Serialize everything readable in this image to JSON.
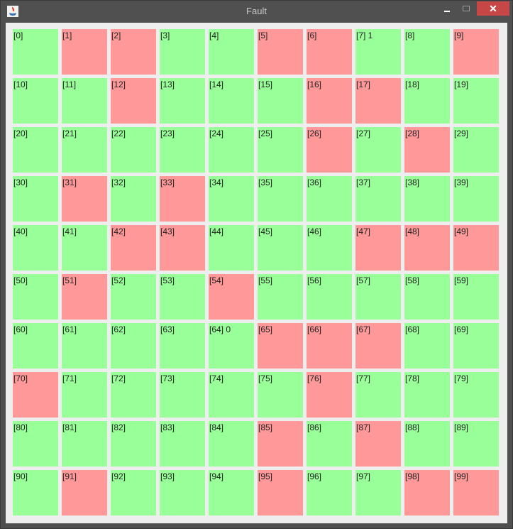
{
  "window": {
    "title": "Fault",
    "app_icon": "java-icon"
  },
  "colors": {
    "ok": "#99ff99",
    "fault": "#ff9999",
    "background": "#eeeeee"
  },
  "cells": [
    {
      "label": "[0]",
      "state": "ok"
    },
    {
      "label": "[1]",
      "state": "fault"
    },
    {
      "label": "[2]",
      "state": "fault"
    },
    {
      "label": "[3]",
      "state": "ok"
    },
    {
      "label": "[4]",
      "state": "ok"
    },
    {
      "label": "[5]",
      "state": "fault"
    },
    {
      "label": "[6]",
      "state": "fault"
    },
    {
      "label": "[7] 1",
      "state": "ok"
    },
    {
      "label": "[8]",
      "state": "ok"
    },
    {
      "label": "[9]",
      "state": "fault"
    },
    {
      "label": "[10]",
      "state": "ok"
    },
    {
      "label": "[11]",
      "state": "ok"
    },
    {
      "label": "[12]",
      "state": "fault"
    },
    {
      "label": "[13]",
      "state": "ok"
    },
    {
      "label": "[14]",
      "state": "ok"
    },
    {
      "label": "[15]",
      "state": "ok"
    },
    {
      "label": "[16]",
      "state": "fault"
    },
    {
      "label": "[17]",
      "state": "fault"
    },
    {
      "label": "[18]",
      "state": "ok"
    },
    {
      "label": "[19]",
      "state": "ok"
    },
    {
      "label": "[20]",
      "state": "ok"
    },
    {
      "label": "[21]",
      "state": "ok"
    },
    {
      "label": "[22]",
      "state": "ok"
    },
    {
      "label": "[23]",
      "state": "ok"
    },
    {
      "label": "[24]",
      "state": "ok"
    },
    {
      "label": "[25]",
      "state": "ok"
    },
    {
      "label": "[26]",
      "state": "fault"
    },
    {
      "label": "[27]",
      "state": "ok"
    },
    {
      "label": "[28]",
      "state": "fault"
    },
    {
      "label": "[29]",
      "state": "ok"
    },
    {
      "label": "[30]",
      "state": "ok"
    },
    {
      "label": "[31]",
      "state": "fault"
    },
    {
      "label": "[32]",
      "state": "ok"
    },
    {
      "label": "[33]",
      "state": "fault"
    },
    {
      "label": "[34]",
      "state": "ok"
    },
    {
      "label": "[35]",
      "state": "ok"
    },
    {
      "label": "[36]",
      "state": "ok"
    },
    {
      "label": "[37]",
      "state": "ok"
    },
    {
      "label": "[38]",
      "state": "ok"
    },
    {
      "label": "[39]",
      "state": "ok"
    },
    {
      "label": "[40]",
      "state": "ok"
    },
    {
      "label": "[41]",
      "state": "ok"
    },
    {
      "label": "[42]",
      "state": "fault"
    },
    {
      "label": "[43]",
      "state": "fault"
    },
    {
      "label": "[44]",
      "state": "ok"
    },
    {
      "label": "[45]",
      "state": "ok"
    },
    {
      "label": "[46]",
      "state": "ok"
    },
    {
      "label": "[47]",
      "state": "fault"
    },
    {
      "label": "[48]",
      "state": "fault"
    },
    {
      "label": "[49]",
      "state": "fault"
    },
    {
      "label": "[50]",
      "state": "ok"
    },
    {
      "label": "[51]",
      "state": "fault"
    },
    {
      "label": "[52]",
      "state": "ok"
    },
    {
      "label": "[53]",
      "state": "ok"
    },
    {
      "label": "[54]",
      "state": "fault"
    },
    {
      "label": "[55]",
      "state": "ok"
    },
    {
      "label": "[56]",
      "state": "ok"
    },
    {
      "label": "[57]",
      "state": "ok"
    },
    {
      "label": "[58]",
      "state": "ok"
    },
    {
      "label": "[59]",
      "state": "ok"
    },
    {
      "label": "[60]",
      "state": "ok"
    },
    {
      "label": "[61]",
      "state": "ok"
    },
    {
      "label": "[62]",
      "state": "ok"
    },
    {
      "label": "[63]",
      "state": "ok"
    },
    {
      "label": "[64] 0",
      "state": "ok"
    },
    {
      "label": "[65]",
      "state": "fault"
    },
    {
      "label": "[66]",
      "state": "fault"
    },
    {
      "label": "[67]",
      "state": "fault"
    },
    {
      "label": "[68]",
      "state": "ok"
    },
    {
      "label": "[69]",
      "state": "ok"
    },
    {
      "label": "[70]",
      "state": "fault"
    },
    {
      "label": "[71]",
      "state": "ok"
    },
    {
      "label": "[72]",
      "state": "ok"
    },
    {
      "label": "[73]",
      "state": "ok"
    },
    {
      "label": "[74]",
      "state": "ok"
    },
    {
      "label": "[75]",
      "state": "ok"
    },
    {
      "label": "[76]",
      "state": "fault"
    },
    {
      "label": "[77]",
      "state": "ok"
    },
    {
      "label": "[78]",
      "state": "ok"
    },
    {
      "label": "[79]",
      "state": "ok"
    },
    {
      "label": "[80]",
      "state": "ok"
    },
    {
      "label": "[81]",
      "state": "ok"
    },
    {
      "label": "[82]",
      "state": "ok"
    },
    {
      "label": "[83]",
      "state": "ok"
    },
    {
      "label": "[84]",
      "state": "ok"
    },
    {
      "label": "[85]",
      "state": "fault"
    },
    {
      "label": "[86]",
      "state": "ok"
    },
    {
      "label": "[87]",
      "state": "fault"
    },
    {
      "label": "[88]",
      "state": "ok"
    },
    {
      "label": "[89]",
      "state": "ok"
    },
    {
      "label": "[90]",
      "state": "ok"
    },
    {
      "label": "[91]",
      "state": "fault"
    },
    {
      "label": "[92]",
      "state": "ok"
    },
    {
      "label": "[93]",
      "state": "ok"
    },
    {
      "label": "[94]",
      "state": "ok"
    },
    {
      "label": "[95]",
      "state": "fault"
    },
    {
      "label": "[96]",
      "state": "ok"
    },
    {
      "label": "[97]",
      "state": "ok"
    },
    {
      "label": "[98]",
      "state": "fault"
    },
    {
      "label": "[99]",
      "state": "fault"
    }
  ]
}
